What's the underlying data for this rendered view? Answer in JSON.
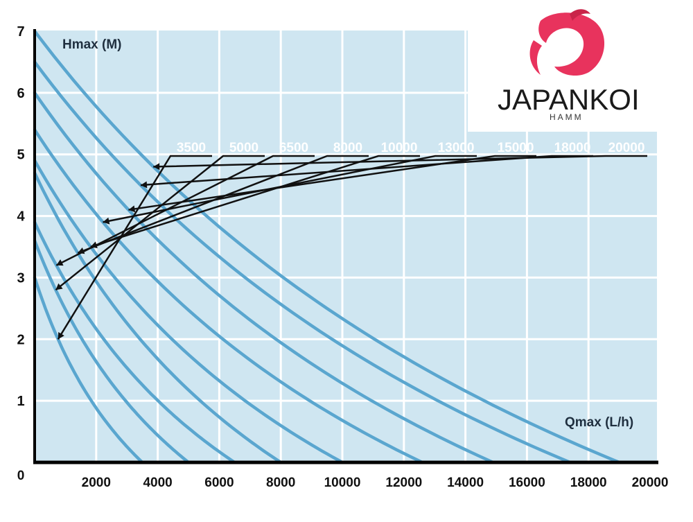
{
  "chart_data": {
    "type": "line",
    "xlabel": "Qmax (L/h)",
    "ylabel": "Hmax (M)",
    "xlim": [
      0,
      20000
    ],
    "ylim": [
      0,
      7
    ],
    "x_ticks": [
      "0",
      "2000",
      "4000",
      "6000",
      "8000",
      "10000",
      "12000",
      "14000",
      "16000",
      "18000",
      "20000"
    ],
    "y_ticks": [
      "1",
      "2",
      "3",
      "4",
      "5",
      "6",
      "7"
    ],
    "grid": true,
    "series": [
      {
        "name": "3500",
        "hmax": 3.0,
        "qmax": 3500
      },
      {
        "name": "5000",
        "hmax": 3.6,
        "qmax": 5000
      },
      {
        "name": "6500",
        "hmax": 3.9,
        "qmax": 6500
      },
      {
        "name": "8000",
        "hmax": 4.7,
        "qmax": 8000
      },
      {
        "name": "10000",
        "hmax": 4.9,
        "qmax": 10000
      },
      {
        "name": "13000",
        "hmax": 5.4,
        "qmax": 12600
      },
      {
        "name": "15000",
        "hmax": 6.0,
        "qmax": 14900
      },
      {
        "name": "18000",
        "hmax": 6.5,
        "qmax": 17400
      },
      {
        "name": "20000",
        "hmax": 7.0,
        "qmax": 19000
      }
    ],
    "colors": {
      "background": "#cfe6f1",
      "curve": "#5aa6cf",
      "grid": "#ffffff",
      "axis": "#000000"
    }
  },
  "logo": {
    "name": "JAPANKOI",
    "sub": "HAMM"
  }
}
